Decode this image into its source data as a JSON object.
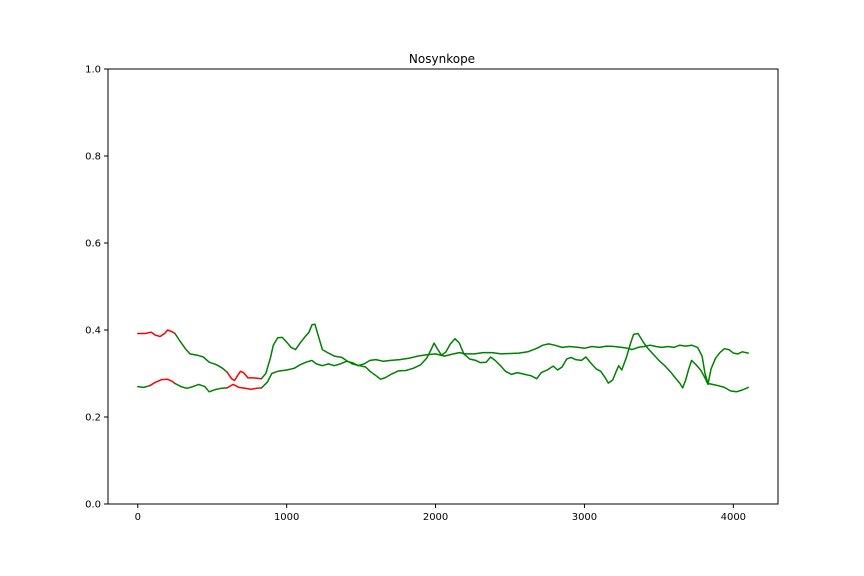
{
  "chart_data": {
    "type": "line",
    "title": "Nosynkope",
    "xlabel": "",
    "ylabel": "",
    "xlim": [
      -200,
      4300
    ],
    "ylim": [
      0.0,
      1.0
    ],
    "xticks": [
      0,
      1000,
      2000,
      3000,
      4000
    ],
    "yticks": [
      0.0,
      0.2,
      0.4,
      0.6,
      0.8,
      1.0
    ],
    "xtick_labels": [
      "0",
      "1000",
      "2000",
      "3000",
      "4000"
    ],
    "ytick_labels": [
      "0.0",
      "0.2",
      "0.4",
      "0.6",
      "0.8",
      "1.0"
    ],
    "grid": false,
    "legend": "none",
    "colors": {
      "red": "#ff0000",
      "green": "#008000"
    },
    "series": [
      {
        "color": "#ff0000",
        "points": [
          [
            0,
            0.392
          ],
          [
            50,
            0.392
          ],
          [
            90,
            0.395
          ],
          [
            120,
            0.388
          ],
          [
            150,
            0.385
          ],
          [
            180,
            0.392
          ],
          [
            200,
            0.4
          ],
          [
            230,
            0.396
          ],
          [
            250,
            0.392
          ]
        ]
      },
      {
        "color": "#008000",
        "points": [
          [
            250,
            0.392
          ],
          [
            280,
            0.376
          ],
          [
            320,
            0.357
          ],
          [
            350,
            0.345
          ],
          [
            400,
            0.342
          ],
          [
            440,
            0.338
          ],
          [
            480,
            0.326
          ],
          [
            530,
            0.32
          ],
          [
            570,
            0.312
          ],
          [
            600,
            0.303
          ]
        ]
      },
      {
        "color": "#ff0000",
        "points": [
          [
            600,
            0.303
          ],
          [
            630,
            0.288
          ],
          [
            650,
            0.284
          ],
          [
            670,
            0.295
          ],
          [
            690,
            0.305
          ],
          [
            710,
            0.302
          ],
          [
            740,
            0.29
          ],
          [
            780,
            0.29
          ],
          [
            830,
            0.288
          ]
        ]
      },
      {
        "color": "#008000",
        "points": [
          [
            830,
            0.288
          ],
          [
            860,
            0.3
          ],
          [
            890,
            0.335
          ],
          [
            910,
            0.365
          ],
          [
            940,
            0.382
          ],
          [
            970,
            0.383
          ],
          [
            1000,
            0.372
          ],
          [
            1030,
            0.36
          ],
          [
            1060,
            0.355
          ],
          [
            1090,
            0.37
          ],
          [
            1120,
            0.383
          ],
          [
            1150,
            0.395
          ],
          [
            1170,
            0.412
          ],
          [
            1190,
            0.413
          ],
          [
            1210,
            0.39
          ],
          [
            1240,
            0.355
          ],
          [
            1280,
            0.347
          ],
          [
            1320,
            0.34
          ],
          [
            1370,
            0.337
          ],
          [
            1400,
            0.33
          ],
          [
            1440,
            0.322
          ],
          [
            1490,
            0.318
          ],
          [
            1530,
            0.315
          ],
          [
            1560,
            0.305
          ],
          [
            1600,
            0.295
          ],
          [
            1630,
            0.287
          ],
          [
            1660,
            0.29
          ],
          [
            1700,
            0.298
          ],
          [
            1750,
            0.306
          ],
          [
            1800,
            0.307
          ],
          [
            1850,
            0.312
          ],
          [
            1900,
            0.32
          ],
          [
            1940,
            0.335
          ],
          [
            1970,
            0.355
          ],
          [
            1990,
            0.37
          ],
          [
            2010,
            0.358
          ],
          [
            2040,
            0.342
          ],
          [
            2070,
            0.35
          ],
          [
            2100,
            0.368
          ],
          [
            2130,
            0.38
          ],
          [
            2160,
            0.37
          ],
          [
            2190,
            0.345
          ],
          [
            2230,
            0.333
          ],
          [
            2270,
            0.33
          ],
          [
            2300,
            0.325
          ],
          [
            2340,
            0.326
          ],
          [
            2370,
            0.338
          ],
          [
            2400,
            0.33
          ],
          [
            2430,
            0.32
          ],
          [
            2470,
            0.305
          ],
          [
            2510,
            0.298
          ],
          [
            2550,
            0.302
          ],
          [
            2600,
            0.298
          ],
          [
            2640,
            0.295
          ],
          [
            2680,
            0.288
          ],
          [
            2710,
            0.302
          ],
          [
            2750,
            0.308
          ],
          [
            2790,
            0.317
          ],
          [
            2820,
            0.308
          ],
          [
            2850,
            0.315
          ],
          [
            2880,
            0.333
          ],
          [
            2910,
            0.337
          ],
          [
            2940,
            0.332
          ],
          [
            2980,
            0.33
          ],
          [
            3010,
            0.338
          ],
          [
            3040,
            0.325
          ],
          [
            3080,
            0.31
          ],
          [
            3110,
            0.305
          ],
          [
            3140,
            0.29
          ],
          [
            3160,
            0.278
          ],
          [
            3190,
            0.285
          ],
          [
            3210,
            0.302
          ],
          [
            3230,
            0.318
          ],
          [
            3250,
            0.308
          ],
          [
            3280,
            0.335
          ],
          [
            3310,
            0.37
          ],
          [
            3330,
            0.39
          ],
          [
            3360,
            0.392
          ],
          [
            3390,
            0.375
          ],
          [
            3420,
            0.36
          ],
          [
            3460,
            0.345
          ],
          [
            3500,
            0.33
          ],
          [
            3540,
            0.318
          ],
          [
            3580,
            0.303
          ],
          [
            3610,
            0.29
          ],
          [
            3640,
            0.278
          ],
          [
            3660,
            0.267
          ],
          [
            3680,
            0.285
          ],
          [
            3700,
            0.31
          ],
          [
            3720,
            0.33
          ],
          [
            3750,
            0.32
          ],
          [
            3780,
            0.308
          ],
          [
            3810,
            0.29
          ],
          [
            3830,
            0.275
          ],
          [
            3850,
            0.31
          ],
          [
            3880,
            0.335
          ],
          [
            3910,
            0.348
          ],
          [
            3940,
            0.357
          ],
          [
            3970,
            0.355
          ],
          [
            4000,
            0.347
          ],
          [
            4030,
            0.345
          ],
          [
            4060,
            0.35
          ],
          [
            4100,
            0.347
          ]
        ]
      },
      {
        "color": "#008000",
        "points": [
          [
            0,
            0.27
          ],
          [
            40,
            0.268
          ],
          [
            80,
            0.272
          ]
        ]
      },
      {
        "color": "#ff0000",
        "points": [
          [
            80,
            0.272
          ],
          [
            120,
            0.28
          ],
          [
            160,
            0.286
          ],
          [
            200,
            0.287
          ],
          [
            230,
            0.282
          ],
          [
            250,
            0.277
          ]
        ]
      },
      {
        "color": "#008000",
        "points": [
          [
            250,
            0.277
          ],
          [
            290,
            0.27
          ],
          [
            330,
            0.266
          ],
          [
            370,
            0.27
          ],
          [
            410,
            0.275
          ],
          [
            450,
            0.27
          ],
          [
            480,
            0.258
          ],
          [
            520,
            0.263
          ],
          [
            560,
            0.266
          ],
          [
            600,
            0.267
          ]
        ]
      },
      {
        "color": "#ff0000",
        "points": [
          [
            600,
            0.267
          ],
          [
            640,
            0.275
          ],
          [
            680,
            0.268
          ],
          [
            720,
            0.266
          ],
          [
            760,
            0.264
          ],
          [
            800,
            0.266
          ],
          [
            830,
            0.267
          ]
        ]
      },
      {
        "color": "#008000",
        "points": [
          [
            830,
            0.267
          ],
          [
            870,
            0.28
          ],
          [
            900,
            0.3
          ],
          [
            940,
            0.305
          ],
          [
            1000,
            0.308
          ],
          [
            1050,
            0.312
          ],
          [
            1090,
            0.32
          ],
          [
            1130,
            0.326
          ],
          [
            1170,
            0.33
          ],
          [
            1200,
            0.322
          ],
          [
            1240,
            0.318
          ],
          [
            1280,
            0.322
          ],
          [
            1320,
            0.318
          ],
          [
            1360,
            0.322
          ],
          [
            1400,
            0.328
          ],
          [
            1440,
            0.325
          ],
          [
            1480,
            0.318
          ],
          [
            1520,
            0.322
          ],
          [
            1560,
            0.33
          ],
          [
            1600,
            0.332
          ],
          [
            1650,
            0.328
          ],
          [
            1700,
            0.33
          ],
          [
            1760,
            0.332
          ],
          [
            1820,
            0.335
          ],
          [
            1880,
            0.34
          ],
          [
            1940,
            0.343
          ],
          [
            2000,
            0.345
          ],
          [
            2060,
            0.34
          ],
          [
            2120,
            0.345
          ],
          [
            2160,
            0.348
          ],
          [
            2200,
            0.345
          ],
          [
            2260,
            0.345
          ],
          [
            2320,
            0.348
          ],
          [
            2380,
            0.348
          ],
          [
            2440,
            0.345
          ],
          [
            2500,
            0.346
          ],
          [
            2560,
            0.347
          ],
          [
            2620,
            0.35
          ],
          [
            2680,
            0.358
          ],
          [
            2720,
            0.365
          ],
          [
            2760,
            0.368
          ],
          [
            2800,
            0.365
          ],
          [
            2850,
            0.36
          ],
          [
            2900,
            0.362
          ],
          [
            2960,
            0.36
          ],
          [
            3000,
            0.358
          ],
          [
            3050,
            0.362
          ],
          [
            3100,
            0.36
          ],
          [
            3150,
            0.363
          ],
          [
            3200,
            0.362
          ],
          [
            3250,
            0.36
          ],
          [
            3290,
            0.358
          ],
          [
            3320,
            0.355
          ],
          [
            3360,
            0.36
          ],
          [
            3400,
            0.362
          ],
          [
            3440,
            0.365
          ],
          [
            3480,
            0.362
          ],
          [
            3520,
            0.36
          ],
          [
            3560,
            0.362
          ],
          [
            3600,
            0.36
          ],
          [
            3640,
            0.365
          ],
          [
            3680,
            0.363
          ],
          [
            3720,
            0.365
          ],
          [
            3760,
            0.36
          ],
          [
            3790,
            0.34
          ],
          [
            3810,
            0.3
          ],
          [
            3830,
            0.277
          ],
          [
            3860,
            0.275
          ],
          [
            3900,
            0.272
          ],
          [
            3940,
            0.268
          ],
          [
            3980,
            0.26
          ],
          [
            4020,
            0.258
          ],
          [
            4060,
            0.262
          ],
          [
            4100,
            0.268
          ]
        ]
      }
    ]
  }
}
